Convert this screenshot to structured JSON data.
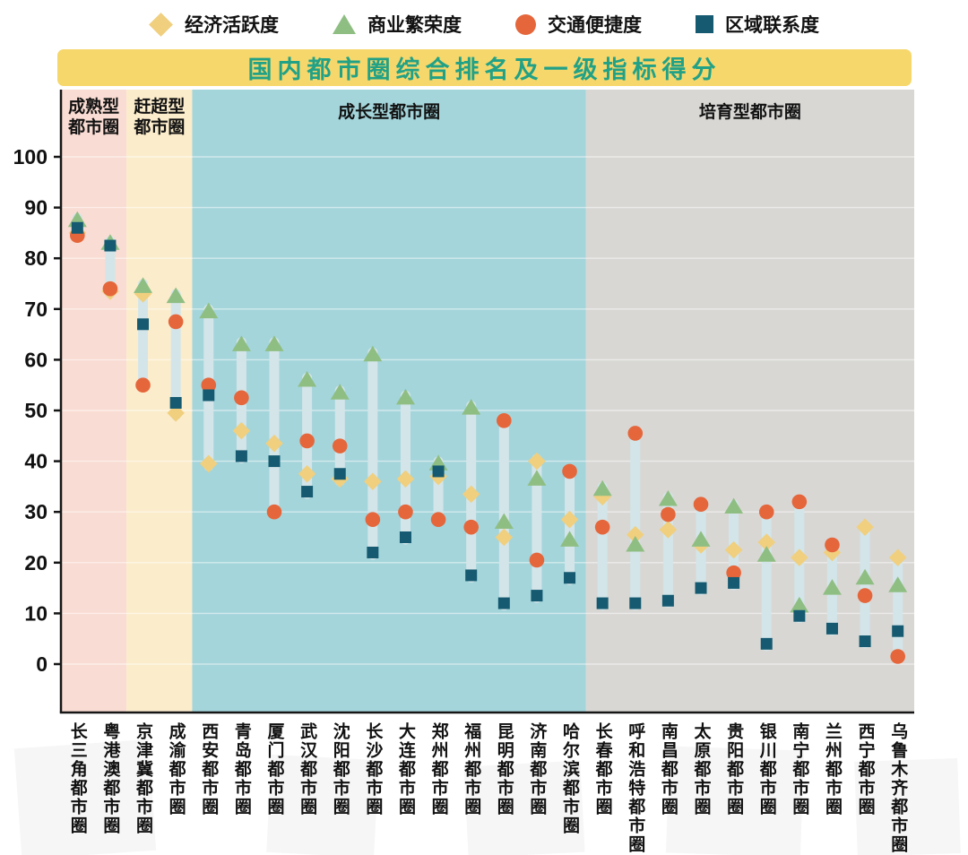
{
  "legend": {
    "items": [
      {
        "label": "经济活跃度",
        "marker": "diamond",
        "color": "#f0cf7e"
      },
      {
        "label": "商业繁荣度",
        "marker": "triangle",
        "color": "#8fbe83"
      },
      {
        "label": "交通便捷度",
        "marker": "circle",
        "color": "#e5663b"
      },
      {
        "label": "区域联系度",
        "marker": "square",
        "color": "#155a70"
      }
    ]
  },
  "title": {
    "text": "国内都市圈综合排名及一级指标得分",
    "bg": "#f6d76c",
    "color": "#21a186"
  },
  "chart_data": {
    "type": "scatter",
    "title": "国内都市圈综合排名及一级指标得分",
    "xlabel": "",
    "ylabel": "",
    "ylim": [
      0,
      100
    ],
    "yticks": [
      0,
      10,
      20,
      30,
      40,
      50,
      60,
      70,
      80,
      90,
      100
    ],
    "grid": true,
    "legend_position": "top",
    "bar_color": "#d3e5e9",
    "categories": [
      "长三角都市圈",
      "粤港澳都市圈",
      "京津冀都市圈",
      "成渝都市圈",
      "西安都市圈",
      "青岛都市圈",
      "厦门都市圈",
      "武汉都市圈",
      "沈阳都市圈",
      "长沙都市圈",
      "大连都市圈",
      "郑州都市圈",
      "福州都市圈",
      "昆明都市圈",
      "济南都市圈",
      "哈尔滨都市圈",
      "长春都市圈",
      "呼和浩特都市圈",
      "南昌都市圈",
      "太原都市圈",
      "贵阳都市圈",
      "银川都市圈",
      "南宁都市圈",
      "兰州都市圈",
      "西宁都市圈",
      "乌鲁木齐都市圈"
    ],
    "groups": [
      {
        "key": "mature",
        "label": "成熟型都市圈",
        "lines": [
          "成熟型",
          "都市圈"
        ],
        "count": 2,
        "bg": "#f9dcd3"
      },
      {
        "key": "catchup",
        "label": "赶超型都市圈",
        "lines": [
          "赶超型",
          "都市圈"
        ],
        "count": 2,
        "bg": "#fbeccb"
      },
      {
        "key": "growing",
        "label": "成长型都市圈",
        "lines": [
          "成长型都市圈"
        ],
        "count": 12,
        "bg": "#a4d5db"
      },
      {
        "key": "cultivating",
        "label": "培育型都市圈",
        "lines": [
          "培育型都市圈"
        ],
        "count": 10,
        "bg": "#d8d7d4"
      }
    ],
    "series": [
      {
        "name": "经济活跃度",
        "marker": "diamond",
        "color": "#f0cf7e",
        "values": [
          85,
          73.5,
          73,
          49.5,
          39.5,
          46,
          43.5,
          37.5,
          36.5,
          36,
          36.5,
          37,
          33.5,
          25,
          40,
          28.5,
          33,
          25.5,
          26.5,
          23.5,
          22.5,
          24,
          21,
          22,
          27,
          21
        ]
      },
      {
        "name": "商业繁荣度",
        "marker": "triangle",
        "color": "#8fbe83",
        "values": [
          87.5,
          83,
          74.5,
          72.5,
          69.5,
          63,
          63,
          56,
          53.5,
          61,
          52.5,
          39.5,
          50.5,
          28,
          36.5,
          24.5,
          34.5,
          23.5,
          32.5,
          24.5,
          31,
          21.5,
          11.5,
          15,
          17,
          15.5
        ]
      },
      {
        "name": "交通便捷度",
        "marker": "circle",
        "color": "#e5663b",
        "values": [
          84.5,
          74,
          55,
          67.5,
          55,
          52.5,
          30,
          44,
          43,
          28.5,
          30,
          28.5,
          27,
          48,
          20.5,
          38,
          27,
          45.5,
          29.5,
          31.5,
          18,
          30,
          32,
          23.5,
          13.5,
          1.5
        ]
      },
      {
        "name": "区域联系度",
        "marker": "square",
        "color": "#155a70",
        "values": [
          86,
          82.5,
          67,
          51.5,
          53,
          41,
          40,
          34,
          37.5,
          22,
          25,
          38,
          17.5,
          12,
          13.5,
          17,
          12,
          12,
          12.5,
          15,
          16,
          4,
          9.5,
          7,
          4.5,
          6.5
        ]
      }
    ]
  }
}
